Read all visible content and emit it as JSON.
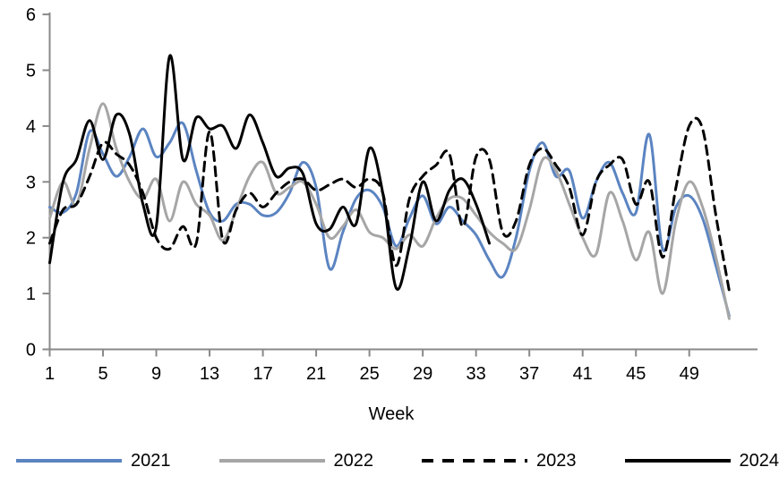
{
  "chart_data": {
    "type": "line",
    "title": "",
    "xlabel": "Week",
    "ylabel": "",
    "xlim": [
      1,
      52
    ],
    "ylim": [
      0,
      6
    ],
    "grid": false,
    "legend_position": "bottom",
    "x_ticks": [
      1,
      5,
      9,
      13,
      17,
      21,
      25,
      29,
      33,
      37,
      41,
      45,
      49
    ],
    "y_ticks": [
      0,
      1,
      2,
      3,
      4,
      5,
      6
    ],
    "x": [
      1,
      2,
      3,
      4,
      5,
      6,
      7,
      8,
      9,
      10,
      11,
      12,
      13,
      14,
      15,
      16,
      17,
      18,
      19,
      20,
      21,
      22,
      23,
      24,
      25,
      26,
      27,
      28,
      29,
      30,
      31,
      32,
      33,
      34,
      35,
      36,
      37,
      38,
      39,
      40,
      41,
      42,
      43,
      44,
      45,
      46,
      47,
      48,
      49,
      50,
      51,
      52
    ],
    "series": [
      {
        "name": "2021",
        "color": "#5B84C1",
        "style": "solid",
        "values": [
          2.55,
          2.45,
          2.8,
          3.9,
          3.5,
          3.1,
          3.45,
          3.95,
          3.45,
          3.7,
          4.05,
          3.2,
          2.45,
          2.3,
          2.6,
          2.6,
          2.4,
          2.45,
          2.8,
          3.35,
          2.9,
          1.45,
          2.1,
          2.7,
          2.85,
          2.55,
          1.85,
          2.35,
          2.75,
          2.25,
          2.55,
          2.3,
          2.05,
          1.6,
          1.3,
          2.0,
          3.2,
          3.7,
          3.1,
          3.2,
          2.35,
          3.0,
          3.35,
          2.8,
          2.45,
          3.85,
          1.8,
          2.55,
          2.75,
          2.35,
          1.5,
          0.6
        ]
      },
      {
        "name": "2022",
        "color": "#A6A6A6",
        "style": "solid",
        "values": [
          2.35,
          3.0,
          2.6,
          3.6,
          4.4,
          3.6,
          3.0,
          2.7,
          3.05,
          2.3,
          3.0,
          2.6,
          2.4,
          1.95,
          2.5,
          3.1,
          3.35,
          2.8,
          2.9,
          3.0,
          2.6,
          2.0,
          2.2,
          2.5,
          2.1,
          2.0,
          1.8,
          2.05,
          1.85,
          2.35,
          2.7,
          2.7,
          2.4,
          2.1,
          1.9,
          1.8,
          2.5,
          3.4,
          3.2,
          2.6,
          2.0,
          1.7,
          2.8,
          2.3,
          1.6,
          2.1,
          1.0,
          2.3,
          3.0,
          2.55,
          1.65,
          0.55
        ]
      },
      {
        "name": "2023",
        "color": "#000000",
        "style": "dashed",
        "values": [
          1.9,
          2.5,
          2.6,
          3.1,
          3.7,
          3.5,
          3.3,
          2.8,
          2.0,
          1.8,
          2.2,
          1.9,
          3.9,
          1.95,
          2.5,
          2.8,
          2.55,
          2.8,
          3.0,
          3.05,
          2.85,
          2.95,
          3.05,
          2.9,
          3.05,
          2.8,
          1.5,
          2.7,
          3.1,
          3.3,
          3.5,
          2.2,
          3.45,
          3.4,
          2.1,
          2.3,
          3.3,
          3.6,
          3.3,
          2.9,
          2.05,
          3.0,
          3.3,
          3.4,
          2.6,
          3.0,
          1.65,
          2.9,
          4.0,
          3.95,
          2.4,
          1.05
        ]
      },
      {
        "name": "2024",
        "color": "#000000",
        "style": "solid",
        "values": [
          1.55,
          3.0,
          3.4,
          4.1,
          3.4,
          4.2,
          3.85,
          2.6,
          2.2,
          5.25,
          3.4,
          4.15,
          3.95,
          4.0,
          3.6,
          4.2,
          3.7,
          3.1,
          3.25,
          3.15,
          2.25,
          2.15,
          2.55,
          2.25,
          3.6,
          2.8,
          1.1,
          1.85,
          3.0,
          2.3,
          2.85,
          3.05,
          2.6,
          1.9
        ]
      }
    ]
  },
  "axis_color": "#898989",
  "text_color": "#000000"
}
